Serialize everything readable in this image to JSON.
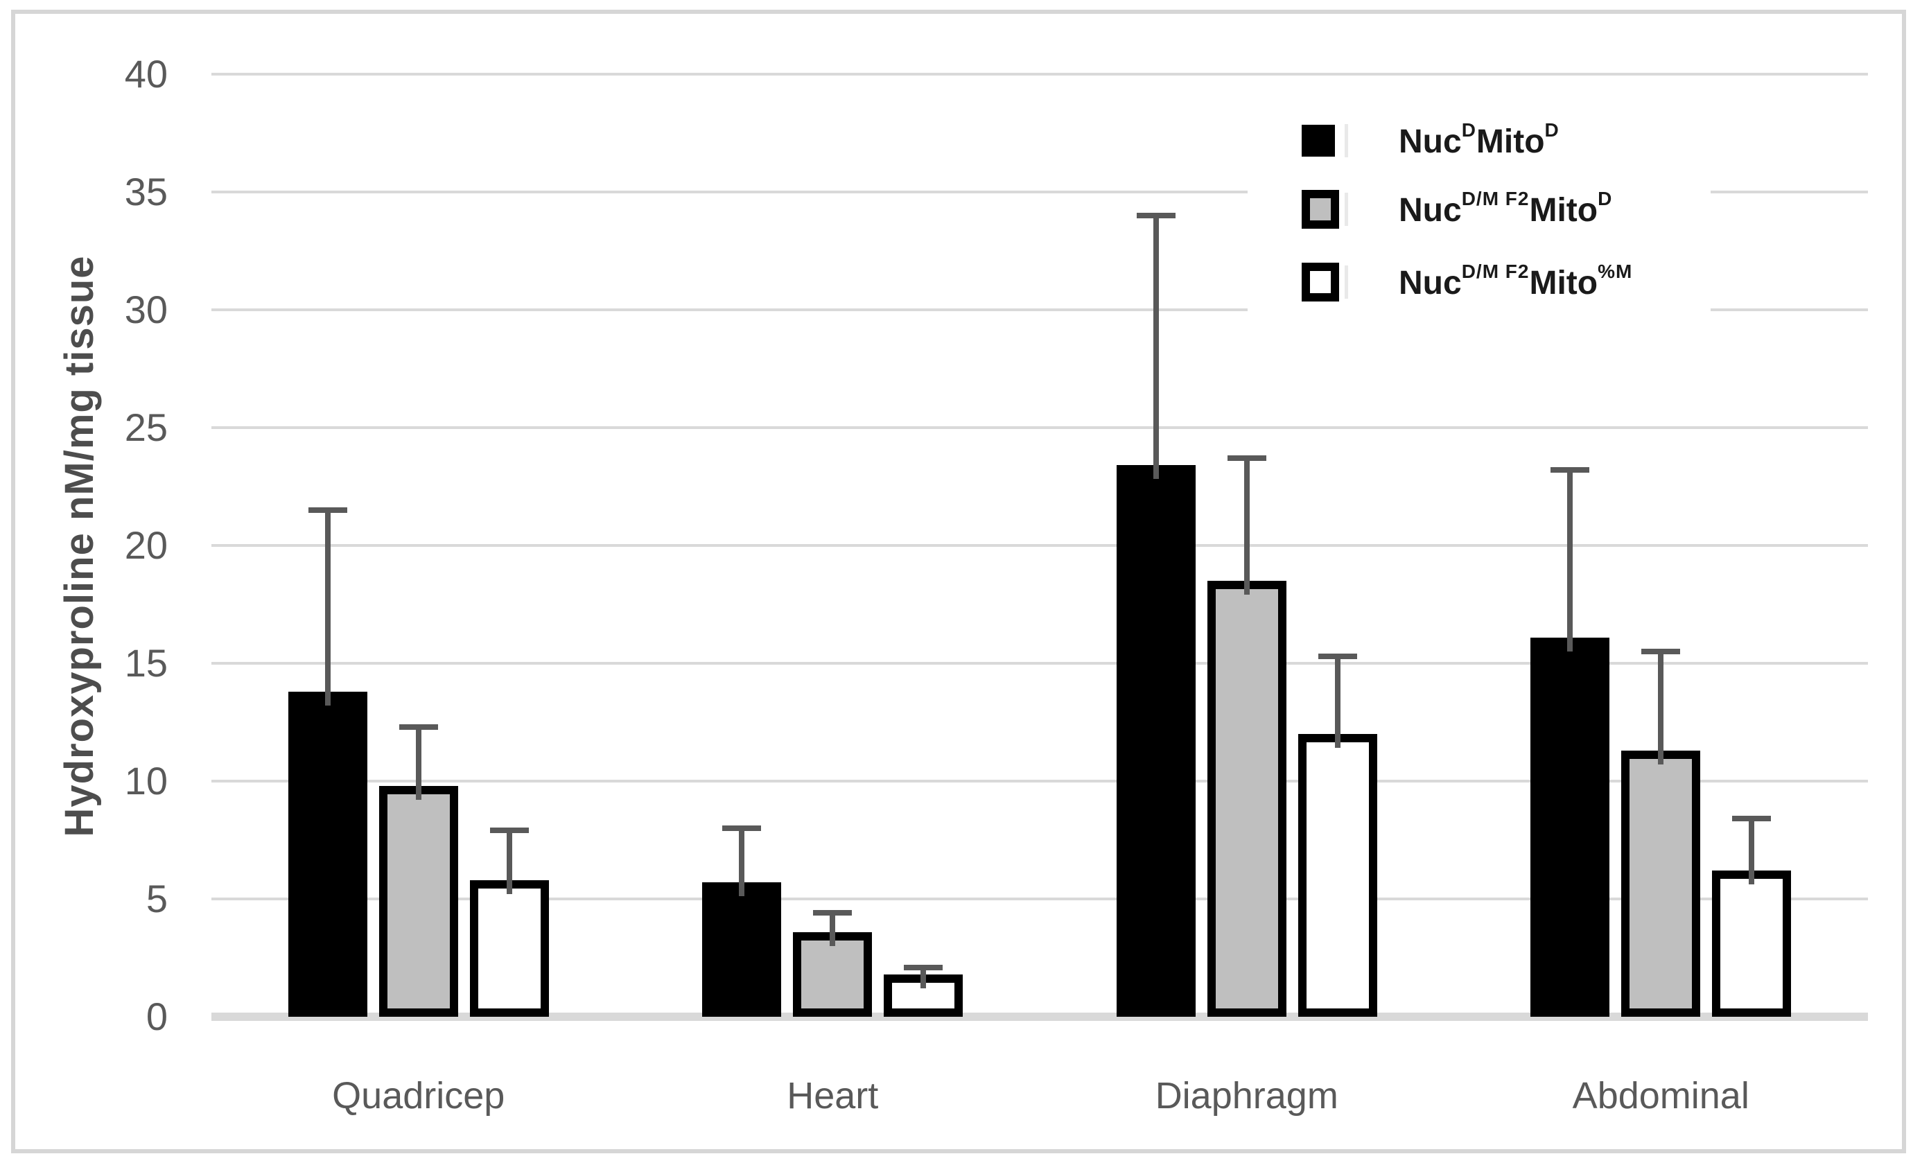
{
  "chart_data": {
    "type": "bar",
    "title": "",
    "xlabel": "",
    "ylabel": "Hydroxyproline nM/mg tissue",
    "ylim": [
      0,
      40
    ],
    "yticks": [
      0,
      5,
      10,
      15,
      20,
      25,
      30,
      35,
      40
    ],
    "grid": "horizontal",
    "legend_position": "top-right-inside",
    "categories": [
      "Quadricep",
      "Heart",
      "Diaphragm",
      "Abdominal"
    ],
    "series": [
      {
        "key": "nuc-d-mito-d",
        "name": "Nuc^D Mito^D",
        "label_parts": [
          {
            "text": "Nuc",
            "sup": "D"
          },
          {
            "text": "Mito",
            "sup": "D"
          }
        ],
        "fill": "#000000",
        "border_color": "#000000",
        "values": [
          13.8,
          5.7,
          23.4,
          16.1
        ],
        "errors_plus": [
          7.7,
          2.3,
          10.6,
          7.1
        ]
      },
      {
        "key": "nuc-dm-f2-mito-d",
        "name": "Nuc^D/M F2 Mito^D",
        "label_parts": [
          {
            "text": "Nuc",
            "sup": "D/M F2"
          },
          {
            "text": "Mito",
            "sup": "D"
          }
        ],
        "fill": "#bfbfbf",
        "border_color": "#000000",
        "values": [
          9.8,
          3.6,
          18.5,
          11.3
        ],
        "errors_plus": [
          2.5,
          0.8,
          5.2,
          4.2
        ]
      },
      {
        "key": "nuc-dm-f2-mito-pm",
        "name": "Nuc^D/M F2 Mito^%M",
        "label_parts": [
          {
            "text": "Nuc",
            "sup": "D/M F2"
          },
          {
            "text": "Mito",
            "sup": "%M"
          }
        ],
        "fill": "#ffffff",
        "border_color": "#000000",
        "values": [
          5.8,
          1.8,
          12.0,
          6.2
        ],
        "errors_plus": [
          2.1,
          0.3,
          3.3,
          2.2
        ]
      }
    ],
    "colors": {
      "error_bar": "#595959",
      "gridline": "#d9d9d9",
      "axis_text": "#595959",
      "legend_text": "#1a1a1a",
      "frame": "#d6d6d6",
      "background": "#ffffff"
    }
  }
}
